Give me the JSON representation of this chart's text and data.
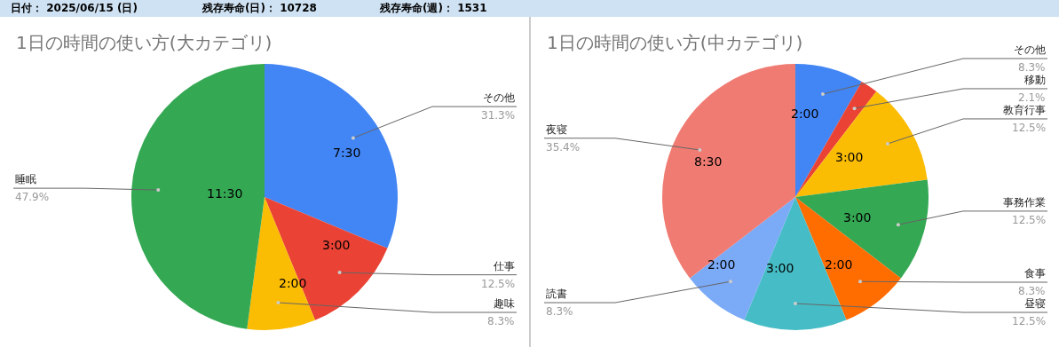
{
  "chart_data": [
    {
      "type": "other",
      "annotations": [
        "日付： 2025/06/15 (日)",
        "残存寿命(日)： 10728",
        "残存寿命(週)： 1531"
      ]
    },
    {
      "type": "pie",
      "title": "1日の時間の使い方(大カテゴリ)",
      "categories": [
        "その他",
        "仕事",
        "趣味",
        "睡眠"
      ],
      "values": [
        31.3,
        12.5,
        8.3,
        47.9
      ],
      "colors": [
        "#4285f4",
        "#ea4335",
        "#fbbc04",
        "#34a853"
      ],
      "value_labels": [
        "31.3%",
        "12.5%",
        "8.3%",
        "47.9%"
      ],
      "annotations": [
        {
          "text": "7:30",
          "x": "その他"
        },
        {
          "text": "3:00",
          "x": "仕事"
        },
        {
          "text": "2:00",
          "x": "趣味"
        },
        {
          "text": "11:30",
          "x": "睡眠"
        }
      ]
    },
    {
      "type": "pie",
      "title": "1日の時間の使い方(中カテゴリ)",
      "categories": [
        "その他",
        "移動",
        "教育行事",
        "事務作業",
        "食事",
        "昼寝",
        "読書",
        "夜寝"
      ],
      "values": [
        8.3,
        2.1,
        12.5,
        12.5,
        8.3,
        12.5,
        8.3,
        35.4
      ],
      "colors": [
        "#4285f4",
        "#ea4335",
        "#fbbc04",
        "#34a853",
        "#ff6d01",
        "#46bdc6",
        "#7baaf7",
        "#f07b72"
      ],
      "value_labels": [
        "8.3%",
        "2.1%",
        "12.5%",
        "12.5%",
        "8.3%",
        "12.5%",
        "8.3%",
        "35.4%"
      ],
      "annotations": [
        {
          "text": "2:00",
          "x": "その他"
        },
        {
          "text": "3:00",
          "x": "教育行事"
        },
        {
          "text": "3:00",
          "x": "事務作業"
        },
        {
          "text": "2:00",
          "x": "食事"
        },
        {
          "text": "3:00",
          "x": "昼寝"
        },
        {
          "text": "2:00",
          "x": "読書"
        },
        {
          "text": "8:30",
          "x": "夜寝"
        }
      ]
    }
  ]
}
